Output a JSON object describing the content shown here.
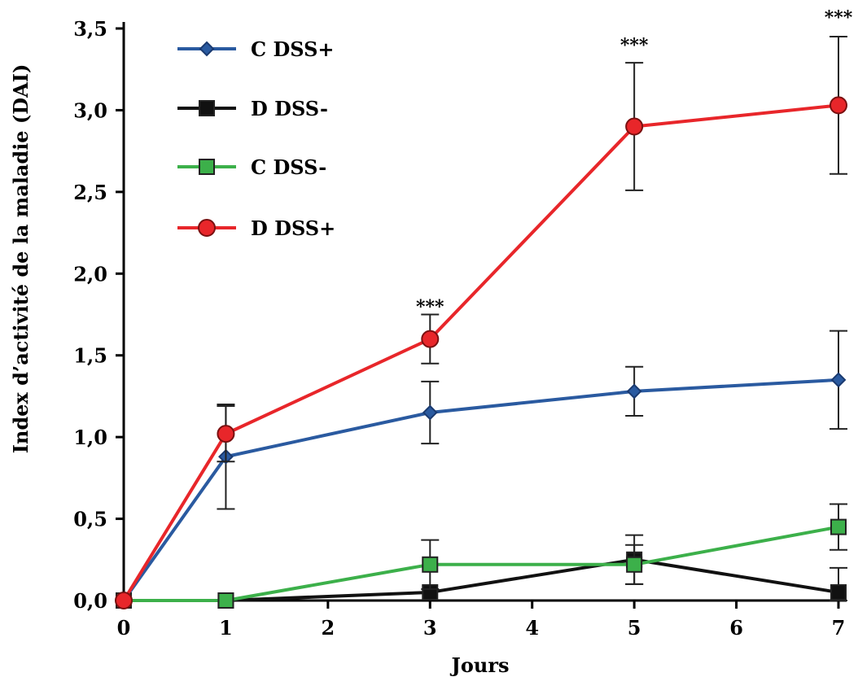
{
  "chart_data": {
    "type": "line",
    "xlabel": "Jours",
    "ylabel": "Index d’activité de la maladie (DAI)",
    "x_ticks": [
      "0",
      "1",
      "2",
      "3",
      "4",
      "5",
      "6",
      "7"
    ],
    "y_ticks": [
      "0,0",
      "0,5",
      "1,0",
      "1,5",
      "2,0",
      "2,5",
      "3,0",
      "3,5"
    ],
    "xlim": [
      0,
      7
    ],
    "ylim": [
      0,
      3.5
    ],
    "grid": false,
    "legend_position": "top-left",
    "series": [
      {
        "name": "C DSS+",
        "color": "#2a5aa0",
        "marker": "diamond",
        "x": [
          0,
          1,
          3,
          5,
          7
        ],
        "y": [
          0.0,
          0.88,
          1.15,
          1.28,
          1.35
        ],
        "err": [
          0.0,
          0.32,
          0.19,
          0.15,
          0.3
        ]
      },
      {
        "name": "D DSS-",
        "color": "#111111",
        "marker": "square",
        "x": [
          0,
          1,
          3,
          5,
          7
        ],
        "y": [
          0.0,
          0.0,
          0.05,
          0.25,
          0.05
        ],
        "err": [
          0.0,
          0.0,
          0.0,
          0.15,
          0.15
        ]
      },
      {
        "name": "C DSS-",
        "color": "#3cb04a",
        "marker": "square",
        "x": [
          0,
          1,
          3,
          5,
          7
        ],
        "y": [
          0.0,
          0.0,
          0.22,
          0.22,
          0.45
        ],
        "err": [
          0.0,
          0.0,
          0.15,
          0.12,
          0.14
        ]
      },
      {
        "name": "D DSS+",
        "color": "#e8262a",
        "marker": "circle",
        "x": [
          0,
          1,
          3,
          5,
          7
        ],
        "y": [
          0.0,
          1.02,
          1.6,
          2.9,
          3.03
        ],
        "err": [
          0.0,
          0.17,
          0.15,
          0.39,
          0.42
        ]
      }
    ],
    "annotations": [
      {
        "text": "***",
        "x": 3,
        "y": 1.8
      },
      {
        "text": "***",
        "x": 5,
        "y": 3.4
      },
      {
        "text": "***",
        "x": 7,
        "y": 3.57
      }
    ]
  }
}
